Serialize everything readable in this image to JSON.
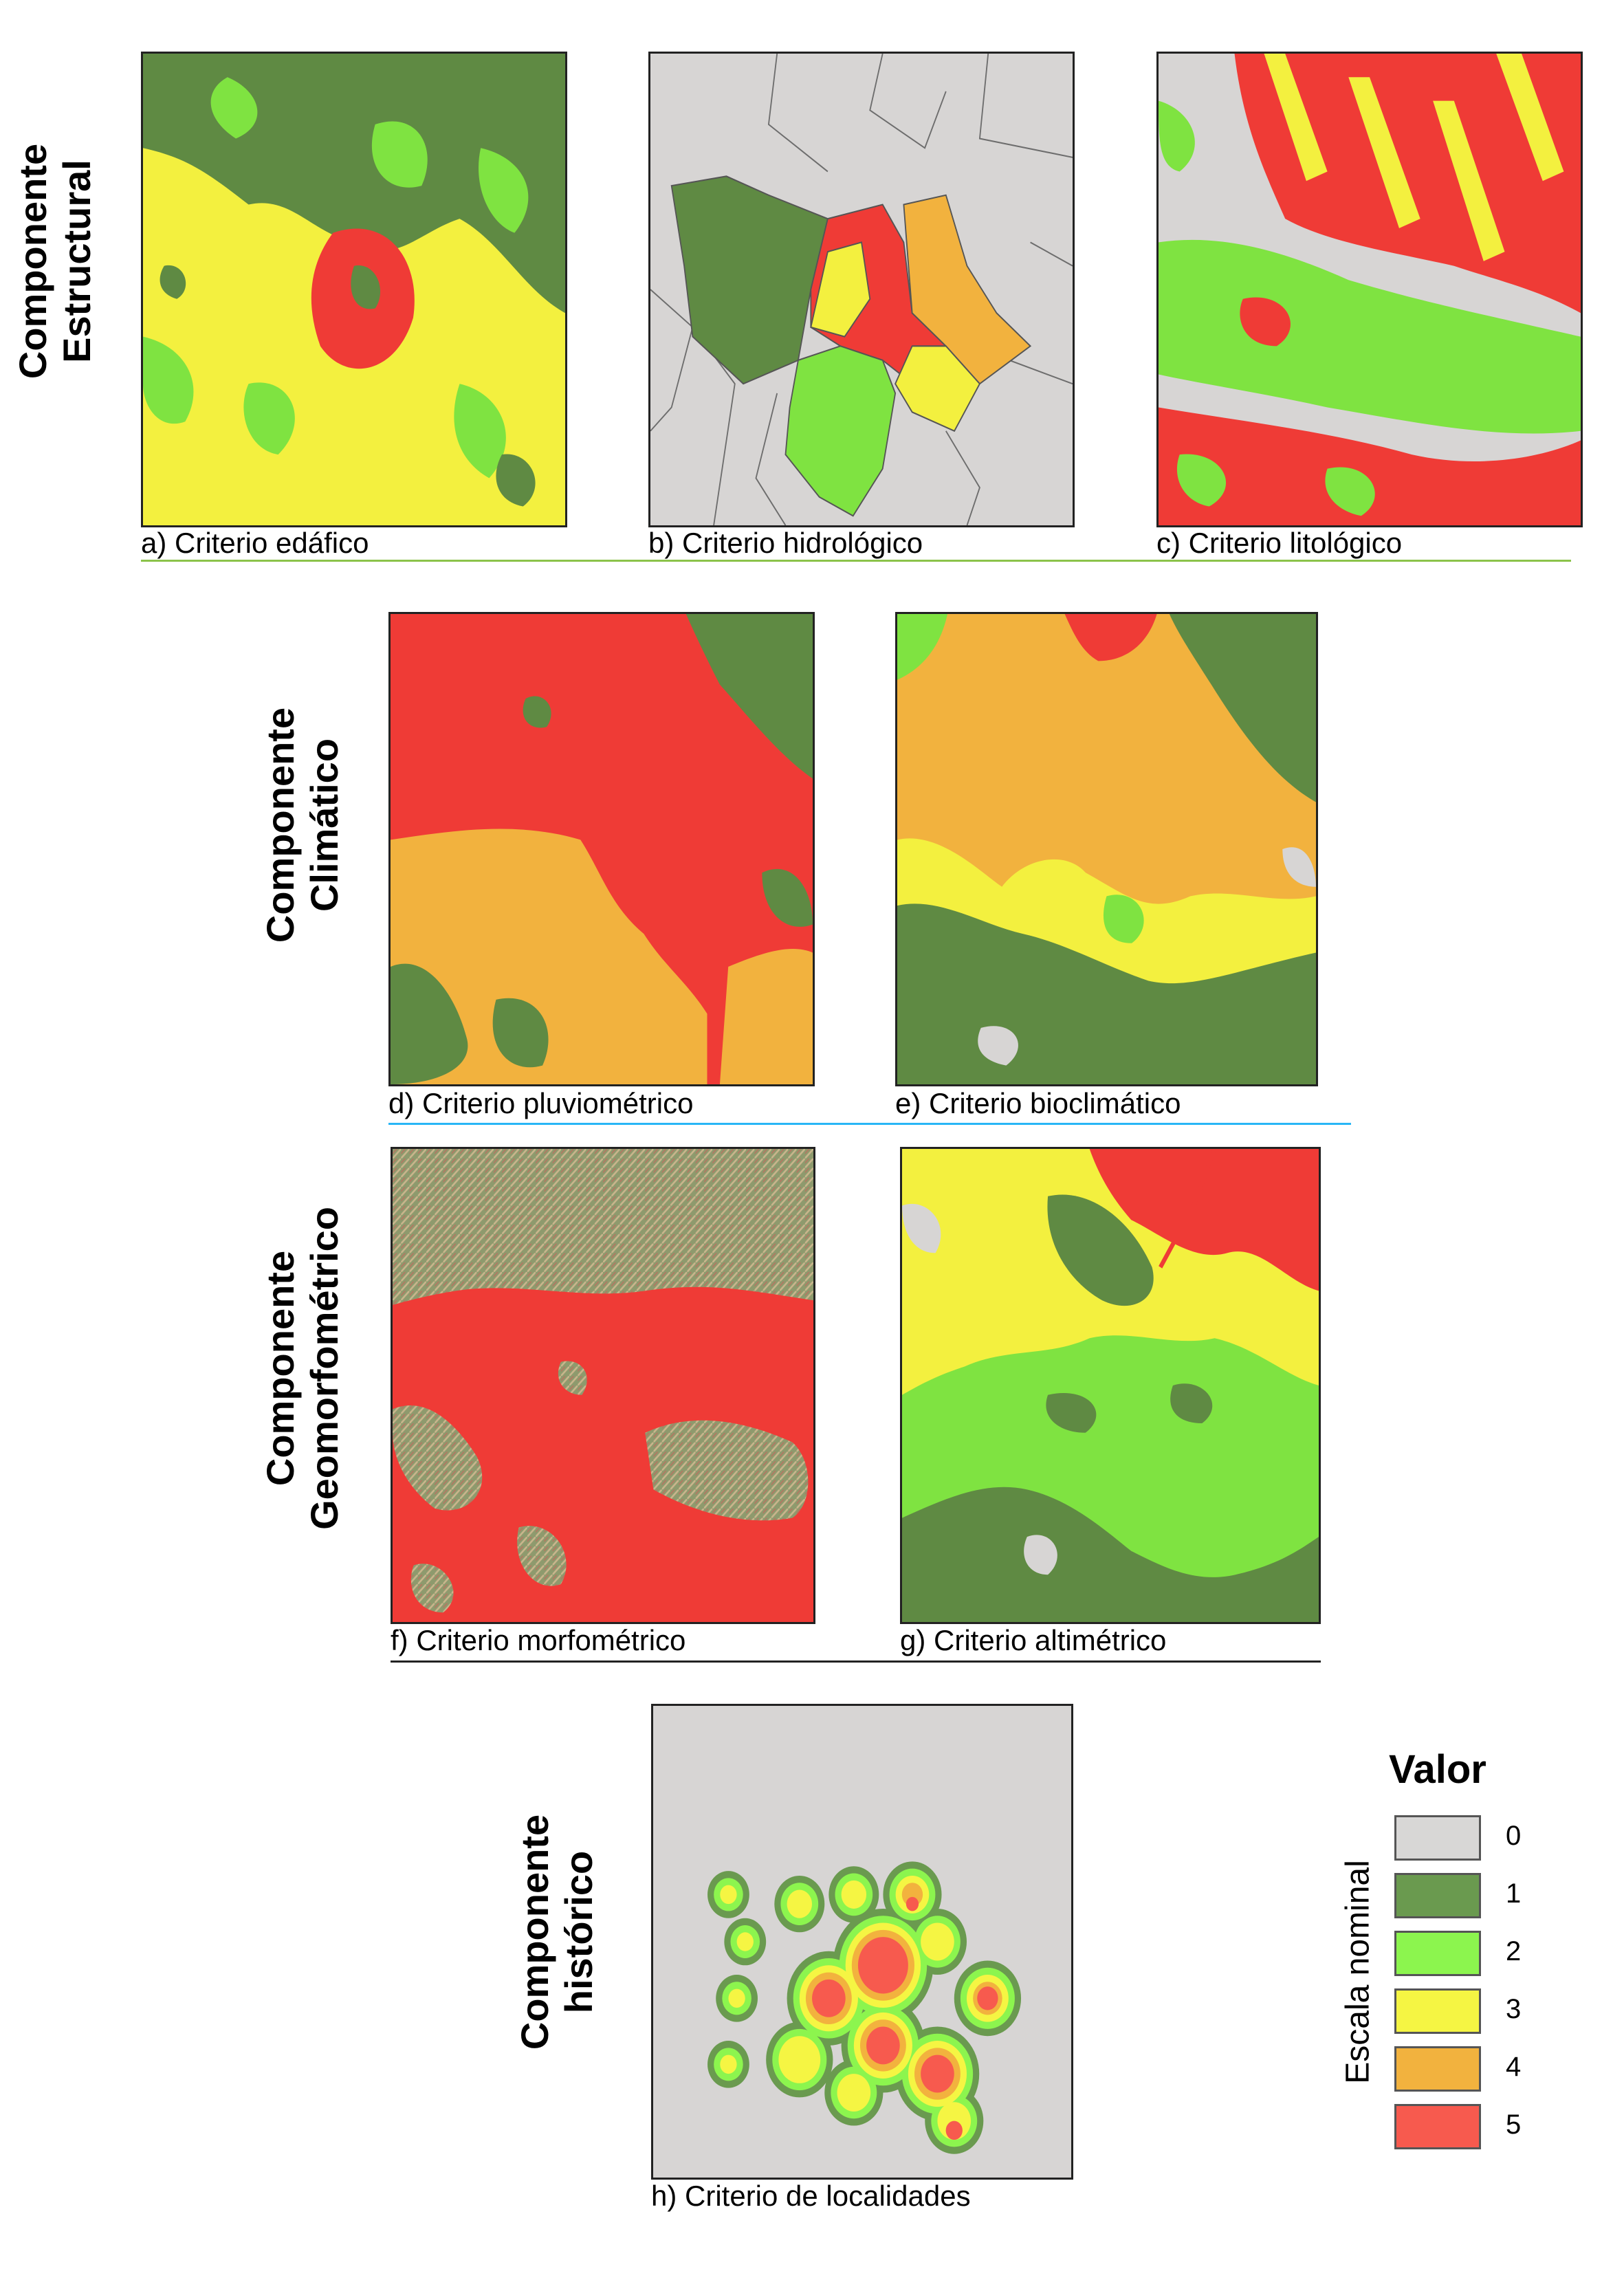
{
  "components": {
    "estructural": "Componente\nEstructural",
    "climatico": "Componente\nClimático",
    "geomorfo": "Componente\nGeomorfométrico",
    "historico": "Componente\nhistórico"
  },
  "captions": {
    "a": "a) Criterio edáfico",
    "b": "b) Criterio hidrológico",
    "c": "c) Criterio litológico",
    "d": "d) Criterio pluviométrico",
    "e": "e) Criterio bioclimático",
    "f": "f) Criterio morfométrico",
    "g": "g) Criterio altimétrico",
    "h": "h) Criterio de localidades"
  },
  "legend": {
    "title": "Valor",
    "axis_label": "Escala nominal",
    "classes": [
      {
        "value": "0",
        "color": "#d8d7d6"
      },
      {
        "value": "1",
        "color": "#6a9a4f"
      },
      {
        "value": "2",
        "color": "#8cf54e"
      },
      {
        "value": "3",
        "color": "#f5f543"
      },
      {
        "value": "4",
        "color": "#f2b23e"
      },
      {
        "value": "5",
        "color": "#f75a4e"
      }
    ]
  },
  "colors": {
    "background_relief": "#d7d5d4",
    "rule_structural": "#8bc34a",
    "rule_climatic": "#29b6f6",
    "rule_geomorph": "#222222"
  }
}
